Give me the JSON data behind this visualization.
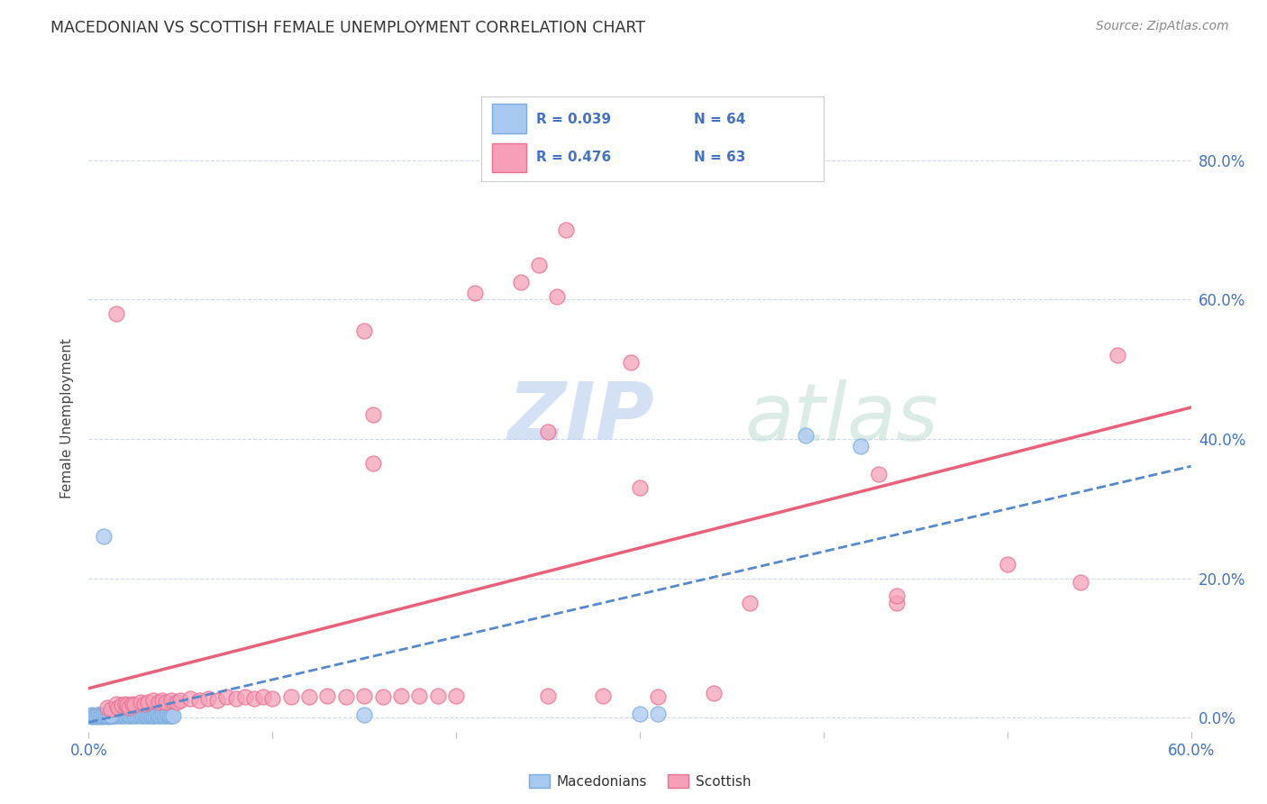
{
  "title": "MACEDONIAN VS SCOTTISH FEMALE UNEMPLOYMENT CORRELATION CHART",
  "source": "Source: ZipAtlas.com",
  "ylabel": "Female Unemployment",
  "ytick_labels": [
    "0.0%",
    "20.0%",
    "40.0%",
    "60.0%",
    "80.0%"
  ],
  "ytick_values": [
    0.0,
    0.2,
    0.4,
    0.6,
    0.8
  ],
  "xlim": [
    0.0,
    0.6
  ],
  "ylim": [
    -0.02,
    0.88
  ],
  "legend_macedonian_R": "R = 0.039",
  "legend_macedonian_N": "N = 64",
  "legend_scottish_R": "R = 0.476",
  "legend_scottish_N": "N = 63",
  "macedonian_color": "#a8c8f0",
  "scottish_color": "#f5a0b8",
  "macedonian_edge_color": "#7aacde",
  "scottish_edge_color": "#e87090",
  "macedonian_line_color": "#5588cc",
  "scottish_line_color": "#e8607a",
  "watermark_zip": "ZIP",
  "watermark_atlas": "atlas",
  "watermark_color": "#ccdcf0",
  "macedonians_scatter": [
    [
      0.002,
      0.002
    ],
    [
      0.003,
      0.003
    ],
    [
      0.004,
      0.002
    ],
    [
      0.005,
      0.004
    ],
    [
      0.005,
      0.003
    ],
    [
      0.006,
      0.003
    ],
    [
      0.007,
      0.002
    ],
    [
      0.008,
      0.004
    ],
    [
      0.009,
      0.003
    ],
    [
      0.01,
      0.003
    ],
    [
      0.011,
      0.002
    ],
    [
      0.012,
      0.004
    ],
    [
      0.013,
      0.003
    ],
    [
      0.014,
      0.003
    ],
    [
      0.015,
      0.003
    ],
    [
      0.016,
      0.004
    ],
    [
      0.017,
      0.003
    ],
    [
      0.018,
      0.003
    ],
    [
      0.019,
      0.004
    ],
    [
      0.02,
      0.003
    ],
    [
      0.021,
      0.004
    ],
    [
      0.022,
      0.003
    ],
    [
      0.023,
      0.003
    ],
    [
      0.024,
      0.004
    ],
    [
      0.025,
      0.003
    ],
    [
      0.026,
      0.003
    ],
    [
      0.027,
      0.004
    ],
    [
      0.028,
      0.003
    ],
    [
      0.029,
      0.003
    ],
    [
      0.03,
      0.004
    ],
    [
      0.031,
      0.003
    ],
    [
      0.032,
      0.003
    ],
    [
      0.033,
      0.004
    ],
    [
      0.034,
      0.003
    ],
    [
      0.035,
      0.003
    ],
    [
      0.036,
      0.003
    ],
    [
      0.037,
      0.004
    ],
    [
      0.038,
      0.003
    ],
    [
      0.039,
      0.003
    ],
    [
      0.04,
      0.004
    ],
    [
      0.041,
      0.003
    ],
    [
      0.042,
      0.003
    ],
    [
      0.043,
      0.004
    ],
    [
      0.044,
      0.003
    ],
    [
      0.045,
      0.003
    ],
    [
      0.046,
      0.003
    ],
    [
      0.001,
      0.003
    ],
    [
      0.002,
      0.004
    ],
    [
      0.003,
      0.003
    ],
    [
      0.004,
      0.003
    ],
    [
      0.005,
      0.004
    ],
    [
      0.006,
      0.003
    ],
    [
      0.007,
      0.003
    ],
    [
      0.008,
      0.004
    ],
    [
      0.009,
      0.003
    ],
    [
      0.01,
      0.003
    ],
    [
      0.011,
      0.004
    ],
    [
      0.012,
      0.003
    ],
    [
      0.15,
      0.004
    ],
    [
      0.008,
      0.26
    ],
    [
      0.3,
      0.006
    ],
    [
      0.31,
      0.006
    ],
    [
      0.39,
      0.405
    ],
    [
      0.42,
      0.39
    ]
  ],
  "scottish_scatter": [
    [
      0.01,
      0.015
    ],
    [
      0.012,
      0.012
    ],
    [
      0.015,
      0.02
    ],
    [
      0.016,
      0.015
    ],
    [
      0.018,
      0.018
    ],
    [
      0.02,
      0.02
    ],
    [
      0.021,
      0.018
    ],
    [
      0.022,
      0.015
    ],
    [
      0.024,
      0.02
    ],
    [
      0.025,
      0.018
    ],
    [
      0.028,
      0.022
    ],
    [
      0.03,
      0.02
    ],
    [
      0.032,
      0.022
    ],
    [
      0.035,
      0.025
    ],
    [
      0.038,
      0.022
    ],
    [
      0.04,
      0.025
    ],
    [
      0.042,
      0.022
    ],
    [
      0.045,
      0.025
    ],
    [
      0.048,
      0.022
    ],
    [
      0.05,
      0.025
    ],
    [
      0.055,
      0.028
    ],
    [
      0.06,
      0.025
    ],
    [
      0.065,
      0.028
    ],
    [
      0.07,
      0.025
    ],
    [
      0.075,
      0.03
    ],
    [
      0.08,
      0.028
    ],
    [
      0.085,
      0.03
    ],
    [
      0.09,
      0.028
    ],
    [
      0.095,
      0.03
    ],
    [
      0.1,
      0.028
    ],
    [
      0.11,
      0.03
    ],
    [
      0.12,
      0.03
    ],
    [
      0.13,
      0.032
    ],
    [
      0.14,
      0.03
    ],
    [
      0.15,
      0.032
    ],
    [
      0.16,
      0.03
    ],
    [
      0.17,
      0.032
    ],
    [
      0.18,
      0.032
    ],
    [
      0.19,
      0.032
    ],
    [
      0.2,
      0.032
    ],
    [
      0.25,
      0.032
    ],
    [
      0.28,
      0.032
    ],
    [
      0.31,
      0.03
    ],
    [
      0.34,
      0.035
    ],
    [
      0.36,
      0.165
    ],
    [
      0.44,
      0.165
    ],
    [
      0.015,
      0.58
    ],
    [
      0.21,
      0.61
    ],
    [
      0.245,
      0.65
    ],
    [
      0.26,
      0.7
    ],
    [
      0.235,
      0.625
    ],
    [
      0.255,
      0.605
    ],
    [
      0.295,
      0.51
    ],
    [
      0.15,
      0.555
    ],
    [
      0.56,
      0.52
    ],
    [
      0.155,
      0.365
    ],
    [
      0.155,
      0.435
    ],
    [
      0.43,
      0.35
    ],
    [
      0.3,
      0.33
    ],
    [
      0.25,
      0.41
    ],
    [
      0.44,
      0.175
    ],
    [
      0.5,
      0.22
    ],
    [
      0.54,
      0.195
    ]
  ]
}
